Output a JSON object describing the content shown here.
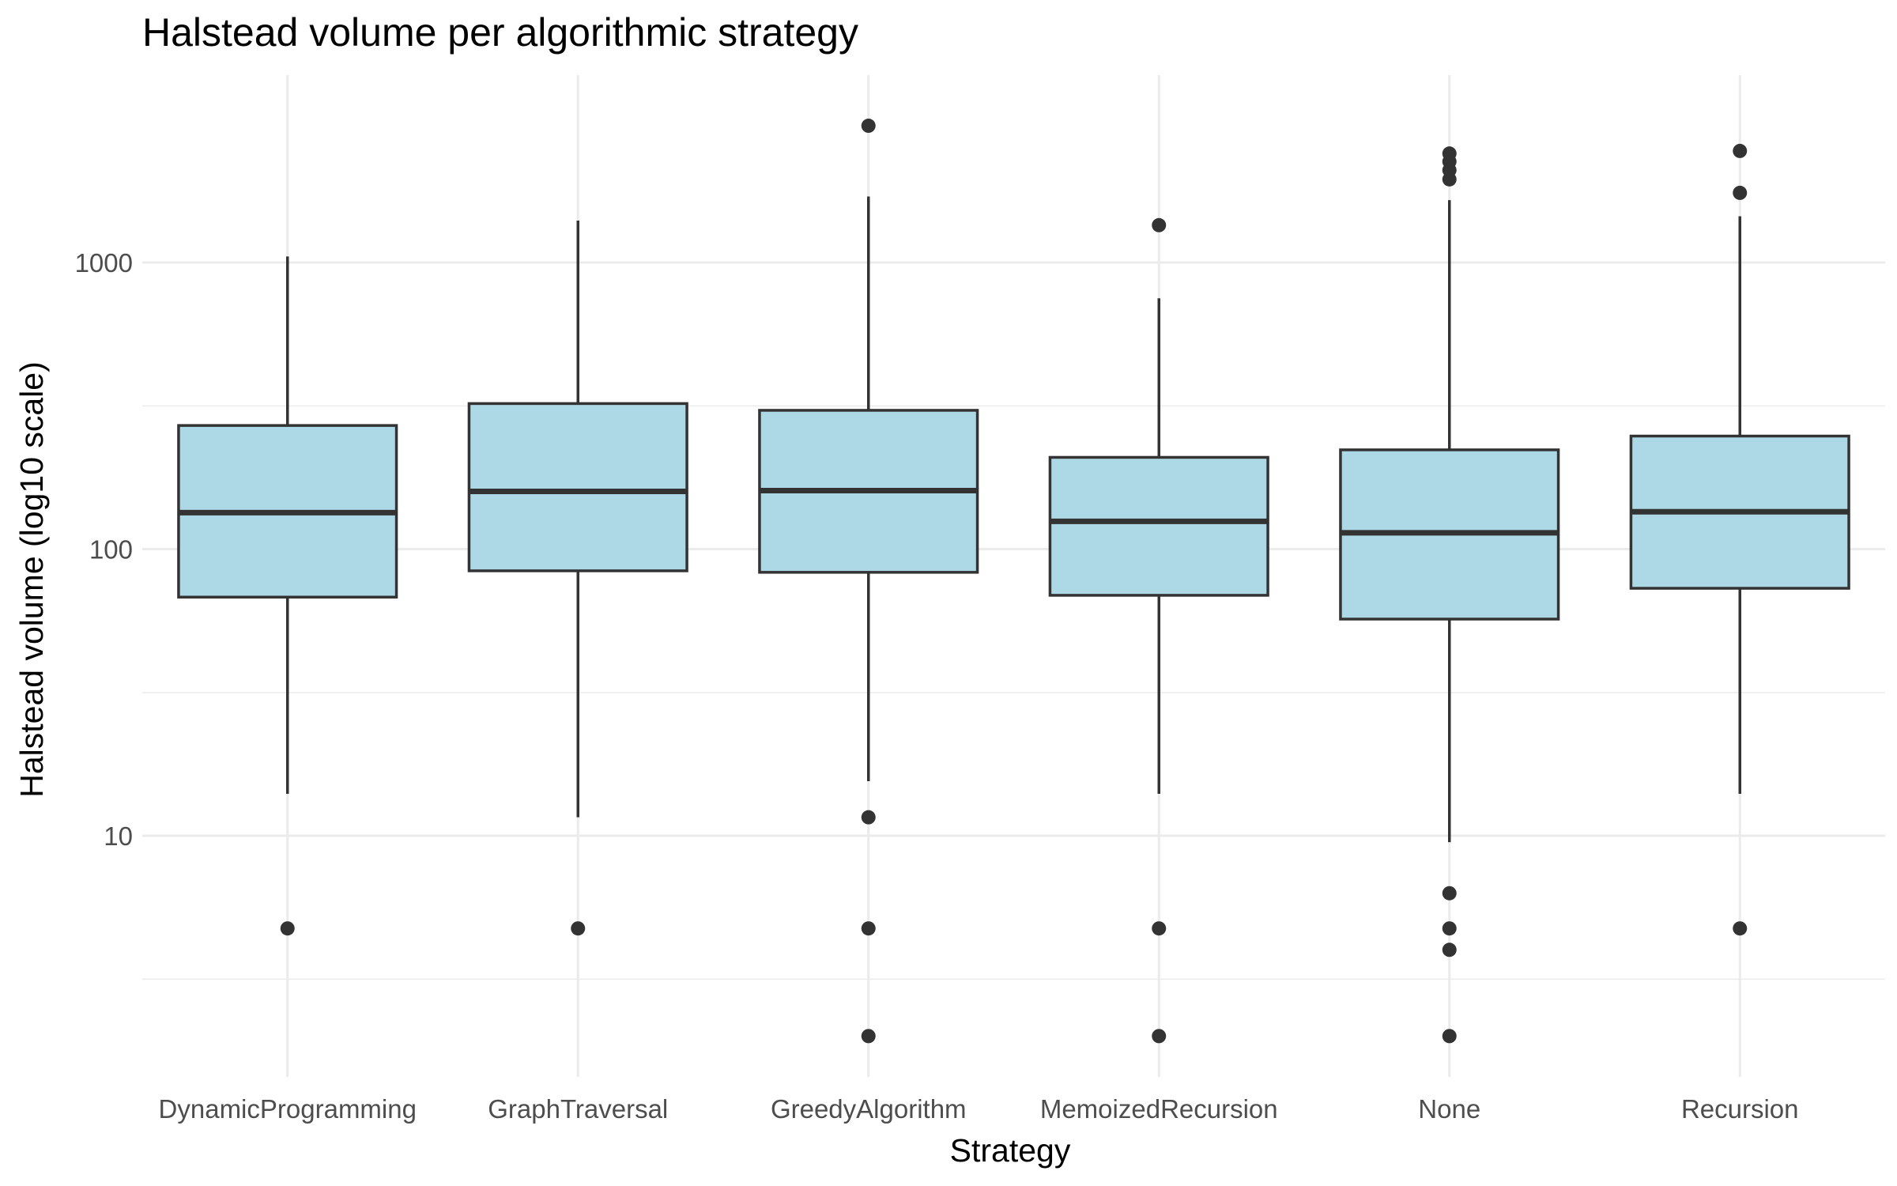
{
  "chart_data": {
    "type": "box",
    "title": "Halstead volume per algorithmic strategy",
    "xlabel": "Strategy",
    "ylabel": "Halstead volume (log10 scale)",
    "y_scale": "log10",
    "ylim": [
      1.55,
      4200
    ],
    "y_major_ticks": [
      10,
      100,
      1000
    ],
    "y_major_tick_labels": [
      "10",
      "100",
      "1000"
    ],
    "y_minor_ticks": [
      3.16,
      31.6,
      316
    ],
    "grid": true,
    "legend": "none",
    "box_fill": "#add8e6",
    "box_outline": "#333333",
    "categories": [
      "DynamicProgramming",
      "GraphTraversal",
      "GreedyAlgorithm",
      "MemoizedRecursion",
      "None",
      "Recursion"
    ],
    "boxes": [
      {
        "category": "DynamicProgramming",
        "whisker_low": 14,
        "q1": 68,
        "median": 134,
        "q3": 270,
        "whisker_high": 1050,
        "outliers": [
          4.75
        ]
      },
      {
        "category": "GraphTraversal",
        "whisker_low": 11.6,
        "q1": 84,
        "median": 159,
        "q3": 322,
        "whisker_high": 1400,
        "outliers": [
          4.75
        ]
      },
      {
        "category": "GreedyAlgorithm",
        "whisker_low": 15.5,
        "q1": 83,
        "median": 160,
        "q3": 305,
        "whisker_high": 1700,
        "outliers": [
          3000,
          11.6,
          4.75,
          2
        ]
      },
      {
        "category": "MemoizedRecursion",
        "whisker_low": 14,
        "q1": 69,
        "median": 125,
        "q3": 209,
        "whisker_high": 750,
        "outliers": [
          1350,
          4.75,
          2
        ]
      },
      {
        "category": "None",
        "whisker_low": 9.5,
        "q1": 57,
        "median": 114,
        "q3": 222,
        "whisker_high": 1650,
        "outliers": [
          2400,
          2250,
          2100,
          1950,
          6.3,
          4.75,
          4,
          2
        ]
      },
      {
        "category": "Recursion",
        "whisker_low": 14,
        "q1": 73,
        "median": 135,
        "q3": 248,
        "whisker_high": 1450,
        "outliers": [
          2450,
          1750,
          4.75
        ]
      }
    ]
  }
}
